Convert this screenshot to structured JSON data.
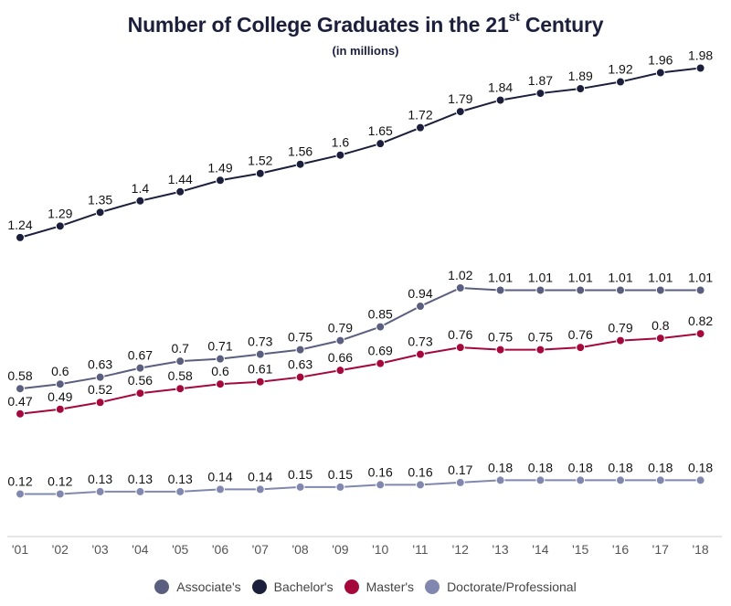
{
  "chart_data": {
    "type": "line",
    "title_main": "Number of College Graduates in the 21",
    "title_sup": "st",
    "title_end": " Century",
    "subtitle": "(in millions)",
    "categories": [
      "'01",
      "'02",
      "'03",
      "'04",
      "'05",
      "'06",
      "'07",
      "'08",
      "'09",
      "'10",
      "'11",
      "'12",
      "'13",
      "'14",
      "'15",
      "'16",
      "'17",
      "'18"
    ],
    "ylim": [
      0,
      2.0
    ],
    "grid": false,
    "legend_position": "bottom",
    "series": [
      {
        "name": "Associate's",
        "color": "#5a5f80",
        "values": [
          0.58,
          0.6,
          0.63,
          0.67,
          0.7,
          0.71,
          0.73,
          0.75,
          0.79,
          0.85,
          0.94,
          1.02,
          1.01,
          1.01,
          1.01,
          1.01,
          1.01,
          1.01
        ]
      },
      {
        "name": "Bachelor's",
        "color": "#1b1f3b",
        "values": [
          1.24,
          1.29,
          1.35,
          1.4,
          1.44,
          1.49,
          1.52,
          1.56,
          1.6,
          1.65,
          1.72,
          1.79,
          1.84,
          1.87,
          1.89,
          1.92,
          1.96,
          1.98
        ]
      },
      {
        "name": "Master's",
        "color": "#a5093c",
        "values": [
          0.47,
          0.49,
          0.52,
          0.56,
          0.58,
          0.6,
          0.61,
          0.63,
          0.66,
          0.69,
          0.73,
          0.76,
          0.75,
          0.75,
          0.76,
          0.79,
          0.8,
          0.82
        ]
      },
      {
        "name": "Doctorate/Professional",
        "color": "#8088b0",
        "values": [
          0.12,
          0.12,
          0.13,
          0.13,
          0.13,
          0.14,
          0.14,
          0.15,
          0.15,
          0.16,
          0.16,
          0.17,
          0.18,
          0.18,
          0.18,
          0.18,
          0.18,
          0.18
        ]
      }
    ]
  }
}
